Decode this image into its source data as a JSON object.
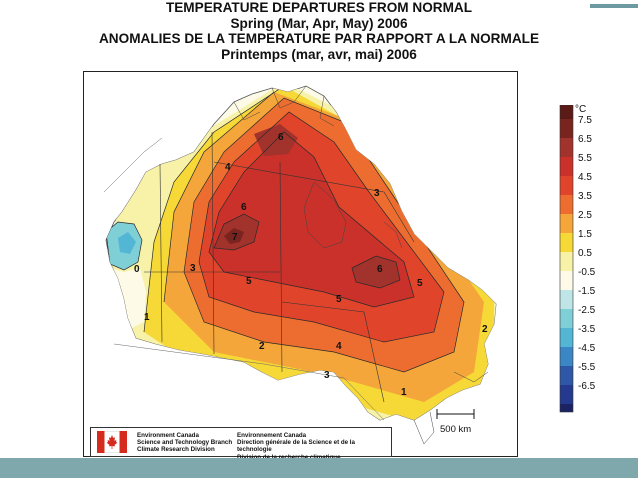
{
  "title": {
    "line1": "TEMPERATURE DEPARTURES FROM NORMAL",
    "line2": "Spring (Mar, Apr, May) 2006",
    "line3": "ANOMALIES DE LA TEMPERATURE PAR RAPPORT A LA NORMALE",
    "line4": "Printemps (mar, avr, mai) 2006"
  },
  "legend": {
    "unit": "°C",
    "entries": [
      {
        "label": "7.5",
        "color": "#7a2420"
      },
      {
        "label": "6.5",
        "color": "#a2322c"
      },
      {
        "label": "5.5",
        "color": "#c9312a"
      },
      {
        "label": "4.5",
        "color": "#e0452c"
      },
      {
        "label": "3.5",
        "color": "#ec6d2f"
      },
      {
        "label": "2.5",
        "color": "#f4a63a"
      },
      {
        "label": "1.5",
        "color": "#f6d836"
      },
      {
        "label": "0.5",
        "color": "#f7f2a8"
      },
      {
        "label": "-0.5",
        "color": "#fdfbe8"
      },
      {
        "label": "-1.5",
        "color": "#bfe5e6"
      },
      {
        "label": "-2.5",
        "color": "#7fcfd6"
      },
      {
        "label": "-3.5",
        "color": "#53b6d4"
      },
      {
        "label": "-4.5",
        "color": "#3b86c5"
      },
      {
        "label": "-5.5",
        "color": "#2f57a8"
      },
      {
        "label": "-6.5",
        "color": "#253a8e"
      }
    ],
    "bottom_color": "#1c2363"
  },
  "contour_labels": [
    {
      "label": "7",
      "t": 7
    },
    {
      "label": "6",
      "t": 6
    },
    {
      "label": "5",
      "t": 5
    },
    {
      "label": "4",
      "t": 4
    },
    {
      "label": "3",
      "t": 3
    },
    {
      "label": "2",
      "t": 2
    },
    {
      "label": "1",
      "t": 1
    },
    {
      "label": "0",
      "t": 0
    }
  ],
  "scale_bar": {
    "label": "500 km"
  },
  "organization": {
    "en": [
      "Environment Canada",
      "Science and Technology Branch",
      "Climate Research Division"
    ],
    "fr": [
      "Environnement Canada",
      "Direction générale de la Science et de la technologie",
      "Division de la recherche climatique"
    ]
  }
}
